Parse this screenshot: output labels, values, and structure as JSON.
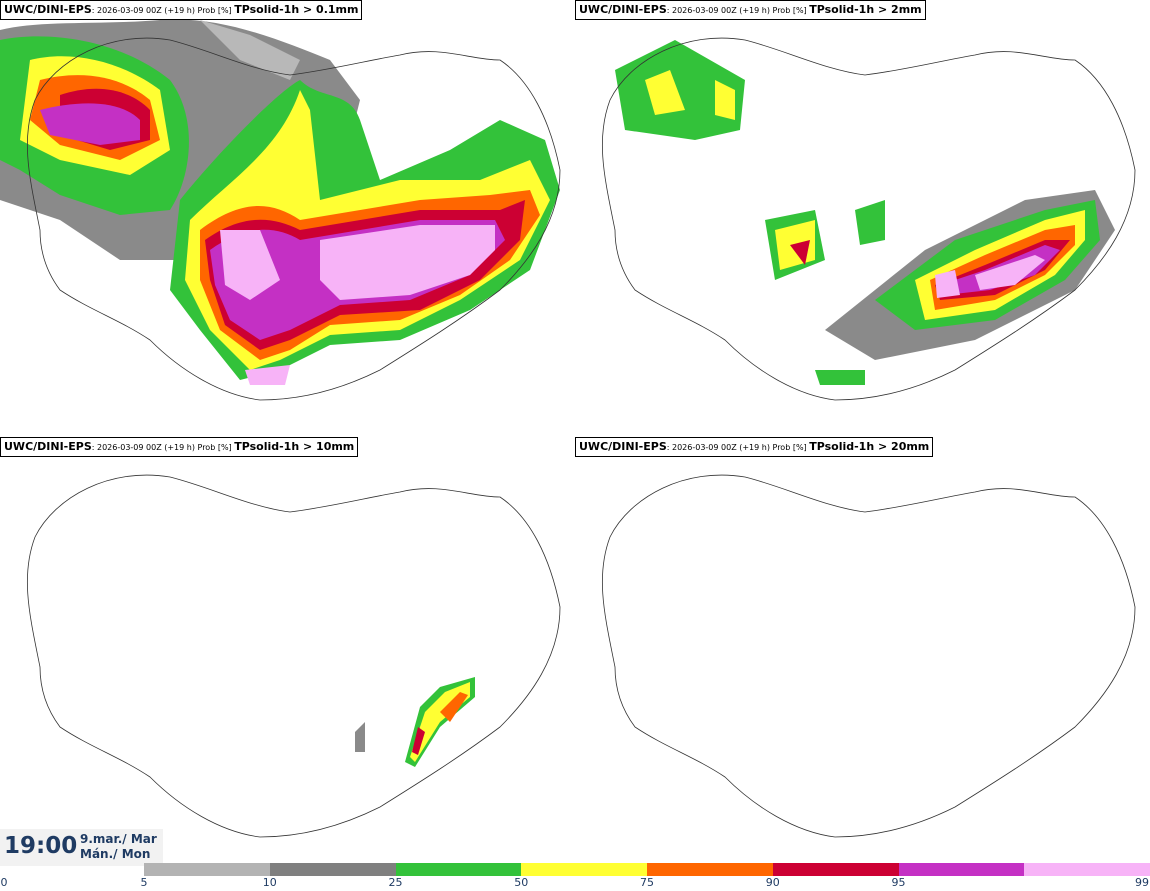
{
  "panels": [
    {
      "model": "UWC/DINI-EPS",
      "run": ": 2026-03-09 00Z (+19 h) Prob [%] ",
      "param": "TPsolid-1h > 0.1mm"
    },
    {
      "model": "UWC/DINI-EPS",
      "run": ": 2026-03-09 00Z (+19 h) Prob [%] ",
      "param": "TPsolid-1h > 2mm"
    },
    {
      "model": "UWC/DINI-EPS",
      "run": ": 2026-03-09 00Z (+19 h) Prob [%] ",
      "param": "TPsolid-1h > 10mm"
    },
    {
      "model": "UWC/DINI-EPS",
      "run": ": 2026-03-09 00Z (+19 h) Prob [%] ",
      "param": "TPsolid-1h > 20mm"
    }
  ],
  "time": "19:00",
  "date_line1": "9.mar./ Mar",
  "date_line2": "Mán./ Mon",
  "colorbar": {
    "ticks": [
      "0",
      "5",
      "10",
      "25",
      "50",
      "75",
      "90",
      "95",
      "99"
    ],
    "colors": [
      "#b3b3b3",
      "#7f7f7f",
      "#33c23a",
      "#ffff33",
      "#ff6600",
      "#cc0033",
      "#c430c4",
      "#f7b3f7"
    ]
  }
}
